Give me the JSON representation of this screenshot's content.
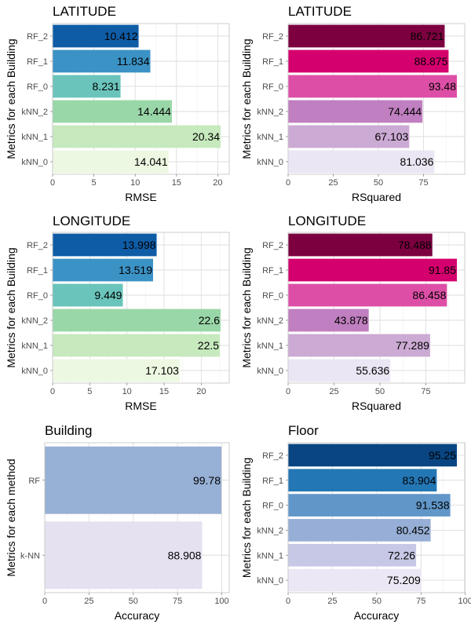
{
  "chart_data": [
    {
      "type": "bar",
      "orientation": "horizontal",
      "title": "LATITUDE",
      "xlabel": "RMSE",
      "ylabel": "Metrics for each Building",
      "categories": [
        "kNN_0",
        "kNN_1",
        "kNN_2",
        "RF_0",
        "RF_1",
        "RF_2"
      ],
      "values": [
        14.041,
        20.34,
        14.444,
        8.231,
        11.834,
        10.412
      ],
      "value_labels": [
        "14.041",
        "20.34",
        "14.444",
        "8.231",
        "11.834",
        "10.412"
      ],
      "xlim": [
        0,
        20.34
      ],
      "xticks": [
        0,
        5,
        10,
        15,
        20
      ],
      "colors": [
        "#edf8e2",
        "#c6e9bd",
        "#9ad7a8",
        "#6ac4bb",
        "#3b92c5",
        "#0f5ca6"
      ],
      "grid": true
    },
    {
      "type": "bar",
      "orientation": "horizontal",
      "title": "LATITUDE",
      "xlabel": "RSquared",
      "ylabel": "Metrics for each Building",
      "categories": [
        "kNN_0",
        "kNN_1",
        "kNN_2",
        "RF_0",
        "RF_1",
        "RF_2"
      ],
      "values": [
        81.036,
        67.103,
        74.444,
        93.48,
        88.875,
        86.721
      ],
      "value_labels": [
        "81.036",
        "67.103",
        "74.444",
        "93.48",
        "88.875",
        "86.721"
      ],
      "xlim": [
        0,
        93.48
      ],
      "xticks": [
        0,
        25,
        50,
        75
      ],
      "colors": [
        "#ebe6f3",
        "#cbaad3",
        "#c07fc0",
        "#dd4fa6",
        "#d4006d",
        "#7c0040"
      ],
      "grid": true
    },
    {
      "type": "bar",
      "orientation": "horizontal",
      "title": "LONGITUDE",
      "xlabel": "RMSE",
      "ylabel": "Metrics for each Building",
      "categories": [
        "kNN_0",
        "kNN_1",
        "kNN_2",
        "RF_0",
        "RF_1",
        "RF_2"
      ],
      "values": [
        17.103,
        22.5,
        22.6,
        9.449,
        13.519,
        13.998
      ],
      "value_labels": [
        "17.103",
        "22.5",
        "22.6",
        "9.449",
        "13.519",
        "13.998"
      ],
      "xlim": [
        0,
        22.6
      ],
      "xticks": [
        0,
        5,
        10,
        15,
        20
      ],
      "colors": [
        "#edf8e2",
        "#c6e9bd",
        "#9ad7a8",
        "#6ac4bb",
        "#3b92c5",
        "#0f5ca6"
      ],
      "grid": true
    },
    {
      "type": "bar",
      "orientation": "horizontal",
      "title": "LONGITUDE",
      "xlabel": "RSquared",
      "ylabel": "Metrics for each Building",
      "categories": [
        "kNN_0",
        "kNN_1",
        "kNN_2",
        "RF_0",
        "RF_1",
        "RF_2"
      ],
      "values": [
        55.636,
        77.289,
        43.878,
        86.458,
        91.85,
        78.488
      ],
      "value_labels": [
        "55.636",
        "77.289",
        "43.878",
        "86.458",
        "91.85",
        "78.488"
      ],
      "xlim": [
        0,
        91.85
      ],
      "xticks": [
        0,
        25,
        50,
        75
      ],
      "colors": [
        "#ebe6f3",
        "#cbaad3",
        "#c07fc0",
        "#dd4fa6",
        "#d4006d",
        "#7c0040"
      ],
      "grid": true
    },
    {
      "type": "bar",
      "orientation": "horizontal",
      "title": "Building",
      "xlabel": "Accuracy",
      "ylabel": "Metrics for each method",
      "categories": [
        "k-NN",
        "RF"
      ],
      "values": [
        88.908,
        99.78
      ],
      "value_labels": [
        "88.908",
        "99.78"
      ],
      "xlim": [
        0,
        99.78
      ],
      "xticks": [
        0,
        25,
        50,
        75,
        100
      ],
      "colors": [
        "#e6e1f0",
        "#97b0d6"
      ],
      "grid": true
    },
    {
      "type": "bar",
      "orientation": "horizontal",
      "title": "Floor",
      "xlabel": "Accuracy",
      "ylabel": "Metrics for each Building",
      "categories": [
        "kNN_0",
        "kNN_1",
        "kNN_2",
        "RF_0",
        "RF_1",
        "RF_2"
      ],
      "values": [
        75.209,
        72.26,
        80.452,
        91.538,
        83.904,
        95.25
      ],
      "value_labels": [
        "75.209",
        "72.26",
        "80.452",
        "91.538",
        "83.904",
        "95.25"
      ],
      "xlim": [
        0,
        95.25
      ],
      "xticks": [
        0,
        25,
        50,
        75,
        100
      ],
      "colors": [
        "#ece7f4",
        "#c6c8e5",
        "#97afd6",
        "#6196c9",
        "#2477b5",
        "#094582"
      ],
      "grid": true
    }
  ]
}
